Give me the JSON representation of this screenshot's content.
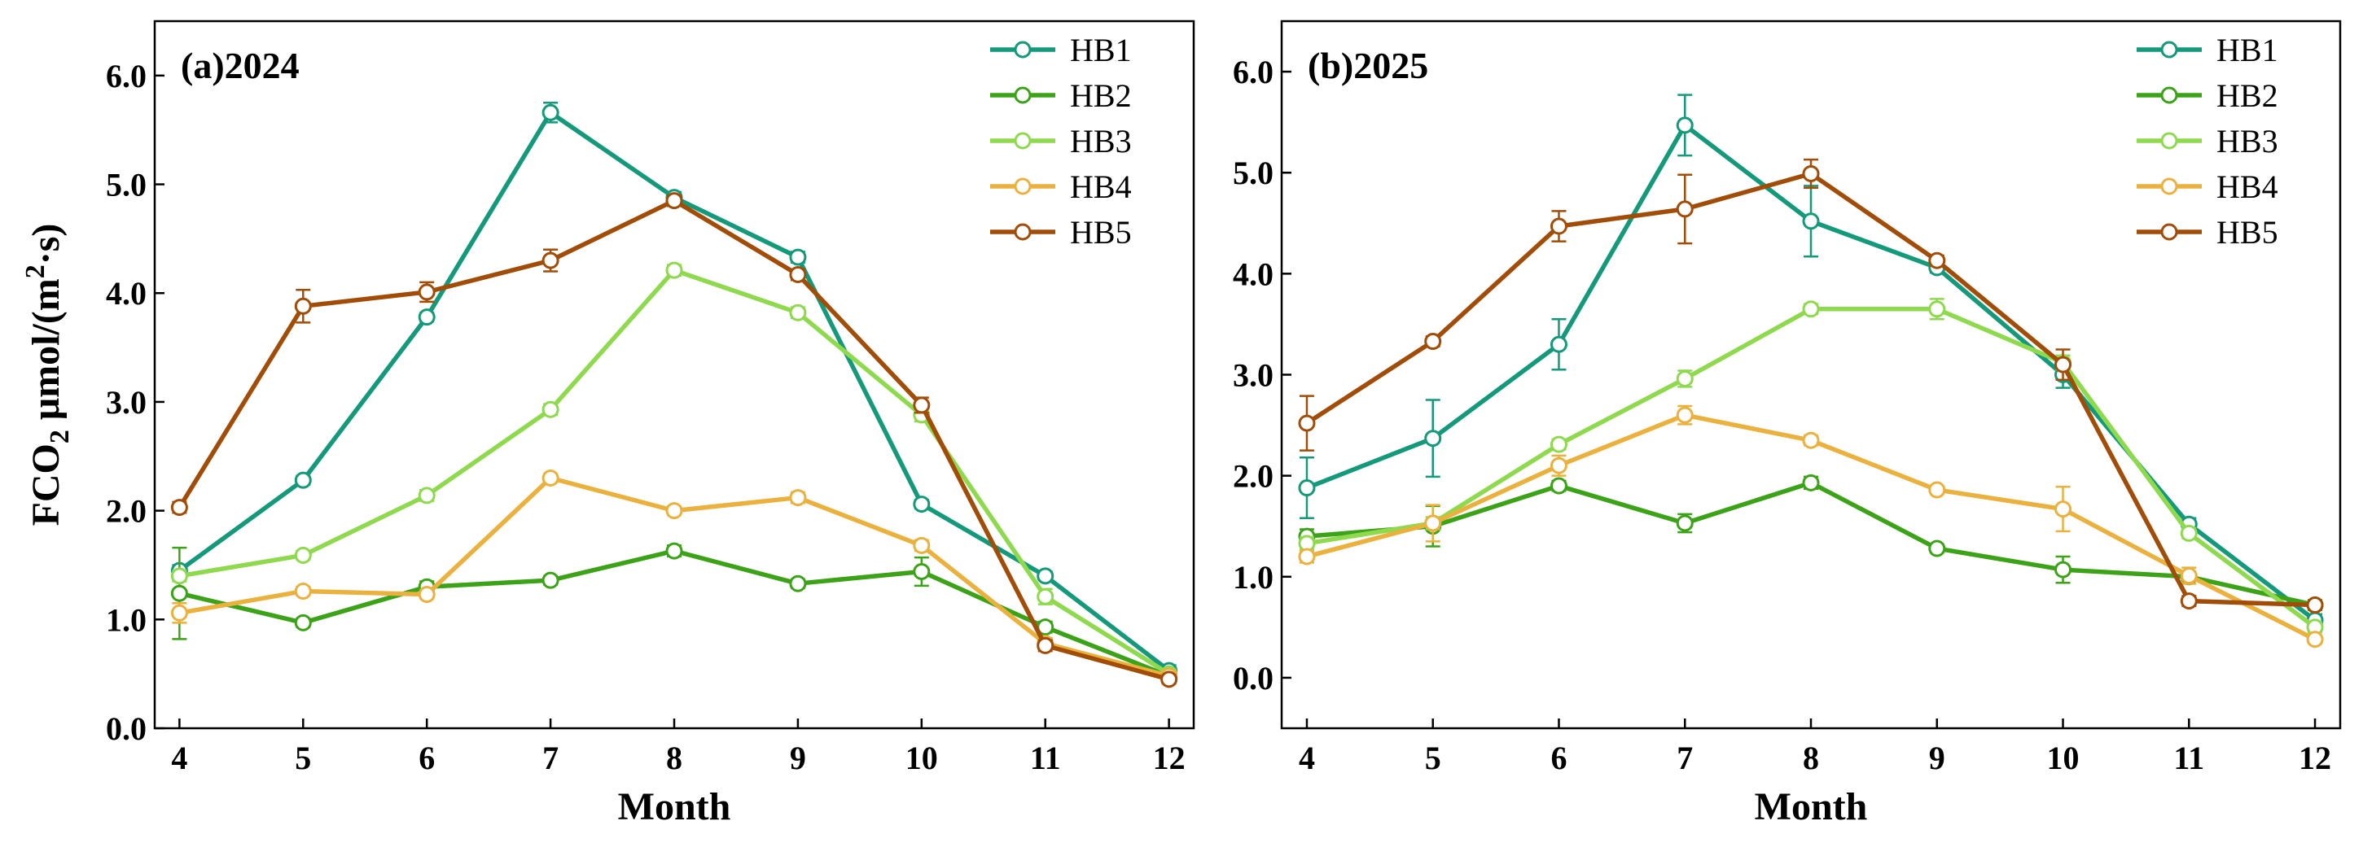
{
  "chart_data": [
    {
      "type": "line",
      "panel_label": "(a)2024",
      "xlabel": "Month",
      "ylabel_main": "FCO",
      "ylabel_sub": "2",
      "ylabel_unit_prefix": " μmol/(m",
      "ylabel_unit_sup": "2",
      "ylabel_unit_suffix": "·s)",
      "x": [
        4,
        5,
        6,
        7,
        8,
        9,
        10,
        11,
        12
      ],
      "x_ticks": [
        "4",
        "5",
        "6",
        "7",
        "8",
        "9",
        "10",
        "11",
        "12"
      ],
      "xlim": [
        3.8,
        12.2
      ],
      "ylim": [
        0.0,
        6.5
      ],
      "y_ticks": [
        "0.0",
        "1.0",
        "2.0",
        "3.0",
        "4.0",
        "5.0",
        "6.0"
      ],
      "legend_position": "top-right",
      "grid": false,
      "series": [
        {
          "name": "HB1",
          "color": "#14997a",
          "values": [
            1.45,
            2.28,
            3.78,
            5.66,
            4.88,
            4.33,
            2.06,
            1.4,
            0.53
          ],
          "errors": [
            0.05,
            0.04,
            0.04,
            0.09,
            0.05,
            0.05,
            0.04,
            0.04,
            0.05
          ]
        },
        {
          "name": "HB2",
          "color": "#3ca319",
          "values": [
            1.24,
            0.97,
            1.3,
            1.36,
            1.63,
            1.33,
            1.44,
            0.93,
            0.48
          ],
          "errors": [
            0.42,
            0.04,
            0.05,
            0.04,
            0.05,
            0.04,
            0.13,
            0.05,
            0.04
          ]
        },
        {
          "name": "HB3",
          "color": "#8fd94f",
          "values": [
            1.4,
            1.59,
            2.14,
            2.93,
            4.21,
            3.82,
            2.88,
            1.21,
            0.5
          ],
          "errors": [
            0.05,
            0.04,
            0.05,
            0.05,
            0.05,
            0.05,
            0.06,
            0.07,
            0.04
          ]
        },
        {
          "name": "HB4",
          "color": "#ebb13e",
          "values": [
            1.06,
            1.26,
            1.23,
            2.3,
            2.0,
            2.12,
            1.68,
            0.78,
            0.48
          ],
          "errors": [
            0.09,
            0.04,
            0.04,
            0.04,
            0.04,
            0.05,
            0.05,
            0.05,
            0.05
          ]
        },
        {
          "name": "HB5",
          "color": "#a24d07",
          "values": [
            2.03,
            3.88,
            4.01,
            4.3,
            4.85,
            4.17,
            2.97,
            0.76,
            0.45
          ],
          "errors": [
            0.05,
            0.15,
            0.09,
            0.1,
            0.05,
            0.05,
            0.07,
            0.05,
            0.04
          ]
        }
      ]
    },
    {
      "type": "line",
      "panel_label": "(b)2025",
      "xlabel": "Month",
      "ylabel_main": "",
      "ylabel_sub": "",
      "ylabel_unit_prefix": "",
      "ylabel_unit_sup": "",
      "ylabel_unit_suffix": "",
      "x": [
        4,
        5,
        6,
        7,
        8,
        9,
        10,
        11,
        12
      ],
      "x_ticks": [
        "4",
        "5",
        "6",
        "7",
        "8",
        "9",
        "10",
        "11",
        "12"
      ],
      "xlim": [
        3.8,
        12.2
      ],
      "ylim": [
        -0.5,
        6.5
      ],
      "y_ticks": [
        "0.0",
        "1.0",
        "2.0",
        "3.0",
        "4.0",
        "5.0",
        "6.0"
      ],
      "legend_position": "top-right",
      "grid": false,
      "series": [
        {
          "name": "HB1",
          "color": "#14997a",
          "values": [
            1.88,
            2.37,
            3.3,
            5.47,
            4.52,
            4.06,
            3.0,
            1.52,
            0.57
          ],
          "errors": [
            0.3,
            0.38,
            0.25,
            0.3,
            0.35,
            0.05,
            0.13,
            0.06,
            0.06
          ]
        },
        {
          "name": "HB2",
          "color": "#3ca319",
          "values": [
            1.4,
            1.5,
            1.9,
            1.53,
            1.93,
            1.28,
            1.07,
            1.0,
            0.72
          ],
          "errors": [
            0.07,
            0.2,
            0.05,
            0.09,
            0.06,
            0.04,
            0.13,
            0.04,
            0.05
          ]
        },
        {
          "name": "HB3",
          "color": "#8fd94f",
          "values": [
            1.33,
            1.53,
            2.31,
            2.96,
            3.65,
            3.65,
            3.12,
            1.43,
            0.5
          ],
          "errors": [
            0.06,
            0.06,
            0.05,
            0.08,
            0.05,
            0.1,
            0.07,
            0.05,
            0.05
          ]
        },
        {
          "name": "HB4",
          "color": "#ebb13e",
          "values": [
            1.2,
            1.53,
            2.1,
            2.6,
            2.35,
            1.86,
            1.67,
            1.01,
            0.38
          ],
          "errors": [
            0.06,
            0.18,
            0.1,
            0.09,
            0.05,
            0.04,
            0.22,
            0.08,
            0.04
          ]
        },
        {
          "name": "HB5",
          "color": "#a24d07",
          "values": [
            2.52,
            3.33,
            4.47,
            4.64,
            4.99,
            4.13,
            3.1,
            0.76,
            0.72
          ],
          "errors": [
            0.27,
            0.05,
            0.15,
            0.34,
            0.14,
            0.05,
            0.15,
            0.05,
            0.04
          ]
        }
      ]
    }
  ]
}
